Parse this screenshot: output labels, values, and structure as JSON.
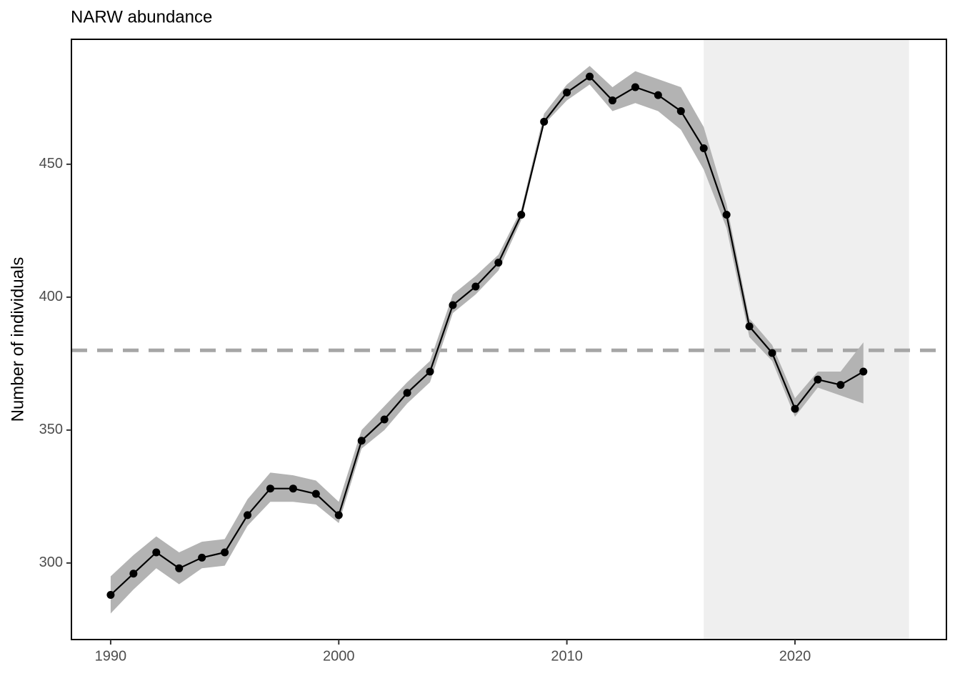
{
  "chart_data": {
    "type": "line",
    "title": "NARW abundance",
    "y_label": "Number of individuals",
    "x": [
      1990,
      1991,
      1992,
      1993,
      1994,
      1995,
      1996,
      1997,
      1998,
      1999,
      2000,
      2001,
      2002,
      2003,
      2004,
      2005,
      2006,
      2007,
      2008,
      2009,
      2010,
      2011,
      2012,
      2013,
      2014,
      2015,
      2016,
      2017,
      2018,
      2019,
      2020,
      2021,
      2022,
      2023
    ],
    "series": [
      {
        "color": "#000000",
        "band_color": "#b3b3b3",
        "values": [
          288,
          296,
          304,
          298,
          302,
          304,
          318,
          328,
          328,
          326,
          318,
          346,
          354,
          364,
          372,
          397,
          404,
          413,
          431,
          466,
          477,
          483,
          474,
          479,
          476,
          470,
          456,
          431,
          389,
          379,
          358,
          369,
          367,
          372
        ],
        "lower": [
          281,
          290,
          298,
          292,
          298,
          299,
          314,
          323,
          323,
          322,
          315,
          343,
          350,
          360,
          368,
          394,
          401,
          410,
          429,
          465,
          474,
          480,
          470,
          473,
          470,
          463,
          448,
          426,
          385,
          376,
          355,
          366,
          363,
          360
        ],
        "upper": [
          295,
          303,
          310,
          304,
          308,
          309,
          324,
          334,
          333,
          331,
          323,
          350,
          359,
          368,
          376,
          401,
          408,
          416,
          433,
          469,
          480,
          487,
          479,
          485,
          482,
          479,
          464,
          435,
          392,
          382,
          362,
          372,
          372,
          383
        ]
      }
    ],
    "reference_line": {
      "value": 380,
      "color": "#a6a6a6"
    },
    "shaded_region": {
      "x": [
        2016,
        2025
      ],
      "color": "#efefef"
    },
    "xlim": [
      1988.28,
      2026.64
    ],
    "ylim": [
      271.2,
      497
    ],
    "xticks": [
      1990,
      2000,
      2010,
      2020
    ],
    "yticks": [
      300,
      350,
      400,
      450
    ],
    "grid": false
  }
}
